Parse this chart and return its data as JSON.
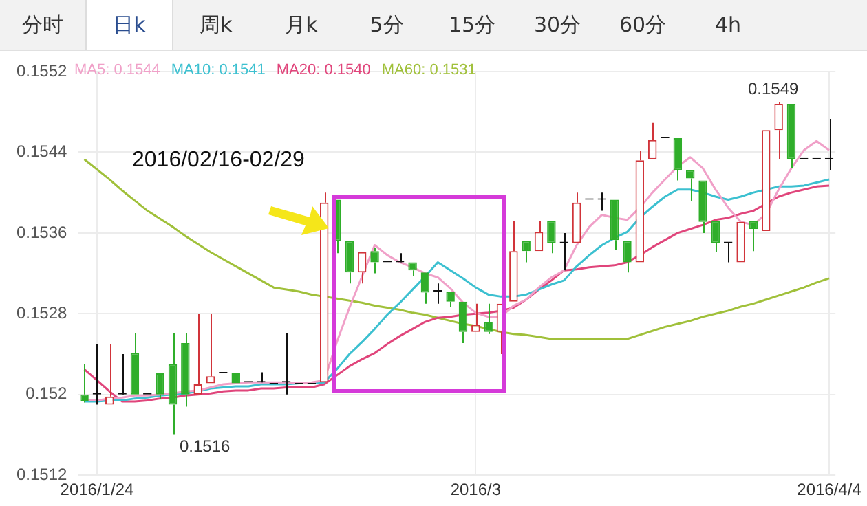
{
  "chart_data": {
    "type": "candlestick",
    "categories": [
      null,
      "2016/1/24",
      null,
      null,
      null,
      null,
      null,
      null,
      null,
      null,
      null,
      null,
      null,
      null,
      null,
      null,
      null,
      null,
      null,
      null,
      null,
      null,
      null,
      null,
      null,
      null,
      null,
      null,
      null,
      null,
      null,
      "2016/3",
      null,
      null,
      null,
      null,
      null,
      null,
      null,
      null,
      null,
      null,
      null,
      null,
      null,
      null,
      null,
      null,
      null,
      null,
      null,
      null,
      null,
      null,
      null,
      null,
      null,
      null,
      null,
      "2016/4/4"
    ],
    "ohlc": [
      [
        0.152,
        0.1523,
        0.15192,
        0.15193
      ],
      [
        0.152,
        0.1525,
        0.1519,
        0.152
      ],
      [
        0.1519,
        0.1525,
        0.1519,
        0.15198
      ],
      [
        0.152,
        0.1524,
        0.152,
        0.152
      ],
      [
        0.15241,
        0.15261,
        0.152,
        0.152
      ],
      [
        0.152,
        0.152,
        0.152,
        0.152
      ],
      [
        0.15221,
        0.15221,
        0.15195,
        0.152
      ],
      [
        0.1523,
        0.15261,
        0.1516,
        0.1519
      ],
      [
        0.15251,
        0.15261,
        0.15188,
        0.152
      ],
      [
        0.152,
        0.1528,
        0.152,
        0.1521
      ],
      [
        0.15211,
        0.1528,
        0.15211,
        0.15218
      ],
      [
        0.15221,
        0.15221,
        0.15221,
        0.15221
      ],
      [
        0.15221,
        0.15221,
        0.15211,
        0.15211
      ],
      [
        0.15212,
        0.15212,
        0.15212,
        0.15212
      ],
      [
        0.15212,
        0.15222,
        0.15212,
        0.15212
      ],
      [
        0.1521,
        0.1521,
        0.1521,
        0.1521
      ],
      [
        0.15212,
        0.15261,
        0.152,
        0.15212
      ],
      [
        0.1521,
        0.1521,
        0.1521,
        0.1521
      ],
      [
        0.1521,
        0.1521,
        0.1521,
        0.1521
      ],
      [
        0.15212,
        0.154,
        0.15212,
        0.1539
      ],
      [
        0.15393,
        0.15393,
        0.1534,
        0.15352
      ],
      [
        0.15352,
        0.15352,
        0.1531,
        0.15321
      ],
      [
        0.15321,
        0.15341,
        0.1531,
        0.15341
      ],
      [
        0.15342,
        0.15345,
        0.1532,
        0.15331
      ],
      [
        0.15331,
        0.15331,
        0.15331,
        0.15331
      ],
      [
        0.15331,
        0.1534,
        0.15331,
        0.15331
      ],
      [
        0.15331,
        0.15331,
        0.15317,
        0.15323
      ],
      [
        0.15321,
        0.15321,
        0.1529,
        0.15301
      ],
      [
        0.15302,
        0.1531,
        0.1529,
        0.15302
      ],
      [
        0.15302,
        0.15302,
        0.15287,
        0.15292
      ],
      [
        0.15292,
        0.15292,
        0.15251,
        0.15262
      ],
      [
        0.15262,
        0.1529,
        0.15262,
        0.15269
      ],
      [
        0.15272,
        0.1529,
        0.1526,
        0.15262
      ],
      [
        0.15262,
        0.1529,
        0.1524,
        0.1529
      ],
      [
        0.15292,
        0.15372,
        0.15292,
        0.15342
      ],
      [
        0.15352,
        0.15352,
        0.15331,
        0.15342
      ],
      [
        0.15342,
        0.15372,
        0.15342,
        0.15361
      ],
      [
        0.15372,
        0.15372,
        0.1534,
        0.1535
      ],
      [
        0.1535,
        0.1536,
        0.15323,
        0.1535
      ],
      [
        0.1535,
        0.154,
        0.1535,
        0.1539
      ],
      [
        0.15393,
        0.15393,
        0.15393,
        0.15393
      ],
      [
        0.15393,
        0.154,
        0.15382,
        0.15393
      ],
      [
        0.15393,
        0.15393,
        0.15343,
        0.15353
      ],
      [
        0.15352,
        0.15352,
        0.15321,
        0.15331
      ],
      [
        0.15331,
        0.15441,
        0.15331,
        0.15432
      ],
      [
        0.15433,
        0.15469,
        0.15433,
        0.15452
      ],
      [
        0.15454,
        0.15454,
        0.15454,
        0.15454
      ],
      [
        0.15454,
        0.15454,
        0.15412,
        0.15422
      ],
      [
        0.15422,
        0.15422,
        0.15392,
        0.15414
      ],
      [
        0.15412,
        0.15412,
        0.1536,
        0.15371
      ],
      [
        0.15372,
        0.15372,
        0.15341,
        0.1535
      ],
      [
        0.1535,
        0.1535,
        0.15331,
        0.1535
      ],
      [
        0.15331,
        0.15371,
        0.15331,
        0.15371
      ],
      [
        0.15372,
        0.15372,
        0.15342,
        0.15364
      ],
      [
        0.15362,
        0.15462,
        0.15362,
        0.15462
      ],
      [
        0.15462,
        0.1549,
        0.15433,
        0.15488
      ],
      [
        0.15488,
        0.15488,
        0.15424,
        0.15433
      ],
      [
        0.15433,
        0.15433,
        0.15433,
        0.15433
      ],
      [
        0.15433,
        0.15433,
        0.15433,
        0.15433
      ],
      [
        0.15433,
        0.15473,
        0.15422,
        0.15433
      ]
    ],
    "series": [
      {
        "name": "MA5: 0.1544",
        "type": "line",
        "color": "#f0a0c8",
        "values": [
          0.15194,
          0.15194,
          0.15196,
          0.15197,
          0.15199,
          0.15199,
          0.152,
          0.15201,
          0.15203,
          0.15204,
          0.15207,
          0.1521,
          0.15211,
          0.15212,
          0.15212,
          0.15212,
          0.15212,
          0.15211,
          0.15212,
          0.15214,
          0.15252,
          0.15286,
          0.15317,
          0.15348,
          0.15338,
          0.15331,
          0.15326,
          0.1532,
          0.15316,
          0.15305,
          0.15291,
          0.15281,
          0.15277,
          0.15277,
          0.15288,
          0.15294,
          0.15306,
          0.15316,
          0.15323,
          0.15348,
          0.15366,
          0.15378,
          0.15375,
          0.15373,
          0.15385,
          0.154,
          0.15413,
          0.15426,
          0.15435,
          0.15424,
          0.15403,
          0.15385,
          0.15371,
          0.15368,
          0.15379,
          0.15403,
          0.15424,
          0.15442,
          0.15451,
          0.15442
        ]
      },
      {
        "name": "MA10: 0.1541",
        "type": "line",
        "color": "#3cc0d0",
        "values": [
          0.15193,
          0.15193,
          0.15194,
          0.15194,
          0.15196,
          0.15197,
          0.15199,
          0.152,
          0.15201,
          0.15203,
          0.15206,
          0.15207,
          0.15208,
          0.15208,
          0.1521,
          0.1521,
          0.1521,
          0.15211,
          0.15211,
          0.15212,
          0.15225,
          0.1524,
          0.15252,
          0.15265,
          0.15279,
          0.15291,
          0.15304,
          0.15317,
          0.15331,
          0.15323,
          0.15315,
          0.15306,
          0.15299,
          0.15297,
          0.15297,
          0.15299,
          0.15304,
          0.15309,
          0.15313,
          0.15327,
          0.15338,
          0.15348,
          0.15355,
          0.15361,
          0.15375,
          0.15386,
          0.15396,
          0.15403,
          0.15403,
          0.154,
          0.15396,
          0.15393,
          0.15396,
          0.154,
          0.15403,
          0.15406,
          0.15406,
          0.15407,
          0.1541,
          0.15413
        ]
      },
      {
        "name": "MA20: 0.1540",
        "type": "line",
        "color": "#e0457b",
        "values": [
          0.15225,
          0.15214,
          0.15203,
          0.15193,
          0.15193,
          0.15194,
          0.15196,
          0.15197,
          0.15199,
          0.152,
          0.15201,
          0.15203,
          0.15204,
          0.15204,
          0.15206,
          0.15206,
          0.15207,
          0.15207,
          0.15207,
          0.1521,
          0.15219,
          0.15228,
          0.15235,
          0.15241,
          0.1525,
          0.15258,
          0.15265,
          0.15272,
          0.15276,
          0.15277,
          0.15279,
          0.1528,
          0.15281,
          0.15283,
          0.15286,
          0.15294,
          0.15304,
          0.15313,
          0.15323,
          0.15324,
          0.15326,
          0.15327,
          0.15328,
          0.15331,
          0.15338,
          0.15346,
          0.15353,
          0.1536,
          0.15364,
          0.15368,
          0.15373,
          0.15375,
          0.15379,
          0.15382,
          0.15389,
          0.15396,
          0.154,
          0.15403,
          0.15406,
          0.15407
        ]
      },
      {
        "name": "MA60: 0.1531",
        "type": "line",
        "color": "#a0c03a",
        "values": [
          0.15433,
          0.15423,
          0.15413,
          0.15402,
          0.15392,
          0.15382,
          0.15374,
          0.15366,
          0.15357,
          0.15349,
          0.15341,
          0.15334,
          0.15327,
          0.1532,
          0.15313,
          0.15306,
          0.15304,
          0.15302,
          0.15299,
          0.15297,
          0.15295,
          0.15293,
          0.15291,
          0.15288,
          0.15286,
          0.15284,
          0.15281,
          0.15279,
          0.15276,
          0.15273,
          0.1527,
          0.15268,
          0.15265,
          0.15262,
          0.1526,
          0.15259,
          0.15257,
          0.15255,
          0.15255,
          0.15255,
          0.15255,
          0.15255,
          0.15255,
          0.15255,
          0.15259,
          0.15263,
          0.15267,
          0.1527,
          0.15273,
          0.15277,
          0.1528,
          0.15283,
          0.15287,
          0.1529,
          0.15294,
          0.15298,
          0.15302,
          0.15306,
          0.15311,
          0.15315
        ]
      }
    ],
    "ylim": [
      0.1512,
      0.1552
    ],
    "yticks": [
      0.1512,
      0.152,
      0.1528,
      0.1536,
      0.1544,
      0.1552
    ],
    "grid": true,
    "legend": "top left",
    "annotations": [
      "2016/02/16-02/29",
      "分时",
      "日k",
      "周k",
      "月k",
      "5分",
      "15分",
      "30分",
      "60分",
      "4h",
      "0.1516",
      "0.1549"
    ]
  }
}
